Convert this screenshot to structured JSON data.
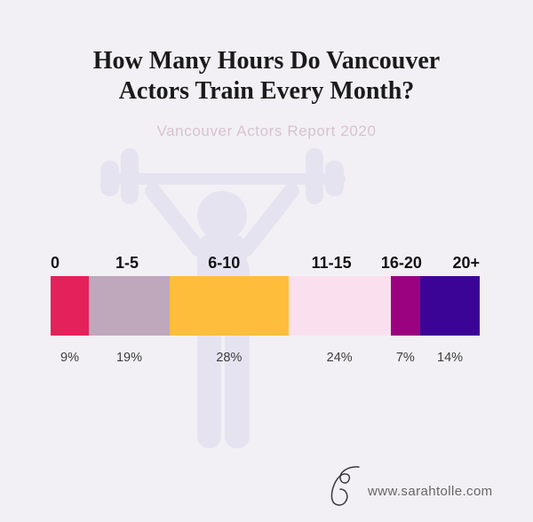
{
  "page": {
    "background_color": "#f2f0f4"
  },
  "header": {
    "title_line1": "How Many Hours Do Vancouver",
    "title_line2": "Actors Train Every Month?",
    "subtitle": "Vancouver Actors Report 2020",
    "subtitle_color": "#d8c2d2"
  },
  "chart_data": {
    "type": "bar",
    "variant": "single-horizontal-stacked-bar",
    "title": "How Many Hours Do Vancouver Actors Train Every Month?",
    "subtitle": "Vancouver Actors Report 2020",
    "categories": [
      "0",
      "1-5",
      "6-10",
      "11-15",
      "16-20",
      "20+"
    ],
    "values": [
      9,
      19,
      28,
      24,
      7,
      14
    ],
    "value_labels": [
      "9%",
      "19%",
      "28%",
      "24%",
      "7%",
      "14%"
    ],
    "colors": [
      "#E4215A",
      "#BFA8BB",
      "#FEBE3B",
      "#FAE0EE",
      "#9A0280",
      "#3C0496"
    ],
    "unit": "percent of actors",
    "legend": "none",
    "grid": false,
    "axis": "none"
  },
  "watermark": {
    "icon": "weightlifter-icon",
    "color": "#e6e3f1"
  },
  "footer": {
    "logo": "signature-s-icon",
    "website": "www.sarahtolle.com"
  }
}
